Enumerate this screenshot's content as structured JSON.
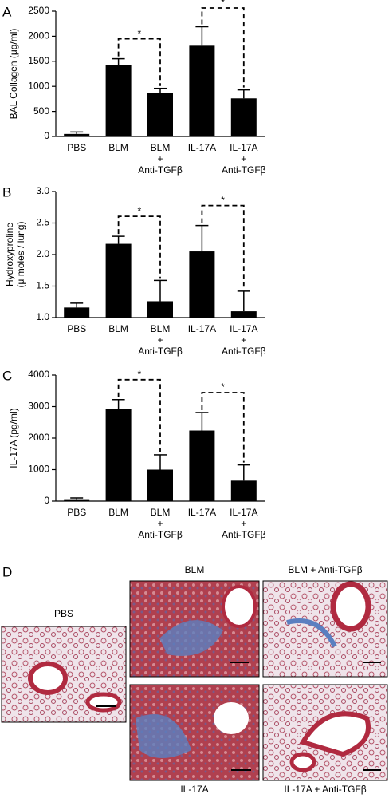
{
  "chart_data": [
    {
      "type": "bar",
      "panel": "A",
      "y_label": "BAL Collagen (μg/ml)",
      "categories": [
        [
          "PBS"
        ],
        [
          "BLM"
        ],
        [
          "BLM",
          "+",
          "Anti-TGFβ"
        ],
        [
          "IL-17A"
        ],
        [
          "IL-17A",
          "+",
          "Anti-TGFβ"
        ]
      ],
      "values": [
        50,
        1420,
        870,
        1810,
        760
      ],
      "errors": [
        40,
        130,
        90,
        380,
        170
      ],
      "color": "#000000",
      "ylim": [
        0,
        2500
      ],
      "yticks": [
        0,
        500,
        1000,
        1500,
        2000,
        2500
      ],
      "annotations": [
        "*",
        "*"
      ]
    },
    {
      "type": "bar",
      "panel": "B",
      "y_label": [
        "Hydroxyproline",
        "(μ moles / lung)"
      ],
      "categories": [
        [
          "PBS"
        ],
        [
          "BLM"
        ],
        [
          "BLM",
          "+",
          "Anti-TGFβ"
        ],
        [
          "IL-17A"
        ],
        [
          "IL-17A",
          "+",
          "Anti-TGFβ"
        ]
      ],
      "values": [
        1.16,
        2.17,
        1.26,
        2.05,
        1.1
      ],
      "errors": [
        0.07,
        0.12,
        0.33,
        0.41,
        0.32
      ],
      "color": "#000000",
      "ylim": [
        1.0,
        3.0
      ],
      "yticks": [
        {
          "value": 1.0,
          "label": "1.0"
        },
        {
          "value": 1.5,
          "label": "1.5"
        },
        {
          "value": 2.0,
          "label": "2.0"
        },
        {
          "value": 2.5,
          "label": "2.5"
        },
        {
          "value": 3.0,
          "label": "3.0"
        }
      ],
      "annotations": [
        "*",
        "*"
      ]
    },
    {
      "type": "bar",
      "panel": "C",
      "y_label": "IL-17A (pg/ml)",
      "categories": [
        [
          "PBS"
        ],
        [
          "BLM"
        ],
        [
          "BLM",
          "+",
          "Anti-TGFβ"
        ],
        [
          "IL-17A"
        ],
        [
          "IL-17A",
          "+",
          "Anti-TGFβ"
        ]
      ],
      "values": [
        60,
        2930,
        1000,
        2240,
        650
      ],
      "errors": [
        40,
        290,
        470,
        570,
        500
      ],
      "color": "#000000",
      "ylim": [
        0,
        4000
      ],
      "yticks": [
        0,
        1000,
        2000,
        3000,
        4000
      ],
      "annotations": [
        "*",
        "*"
      ]
    }
  ],
  "micrographs": {
    "panel": "D",
    "labels": [
      "PBS",
      "BLM",
      "BLM + Anti-TGFβ",
      "IL-17A",
      "IL-17A + Anti-TGFβ"
    ]
  }
}
